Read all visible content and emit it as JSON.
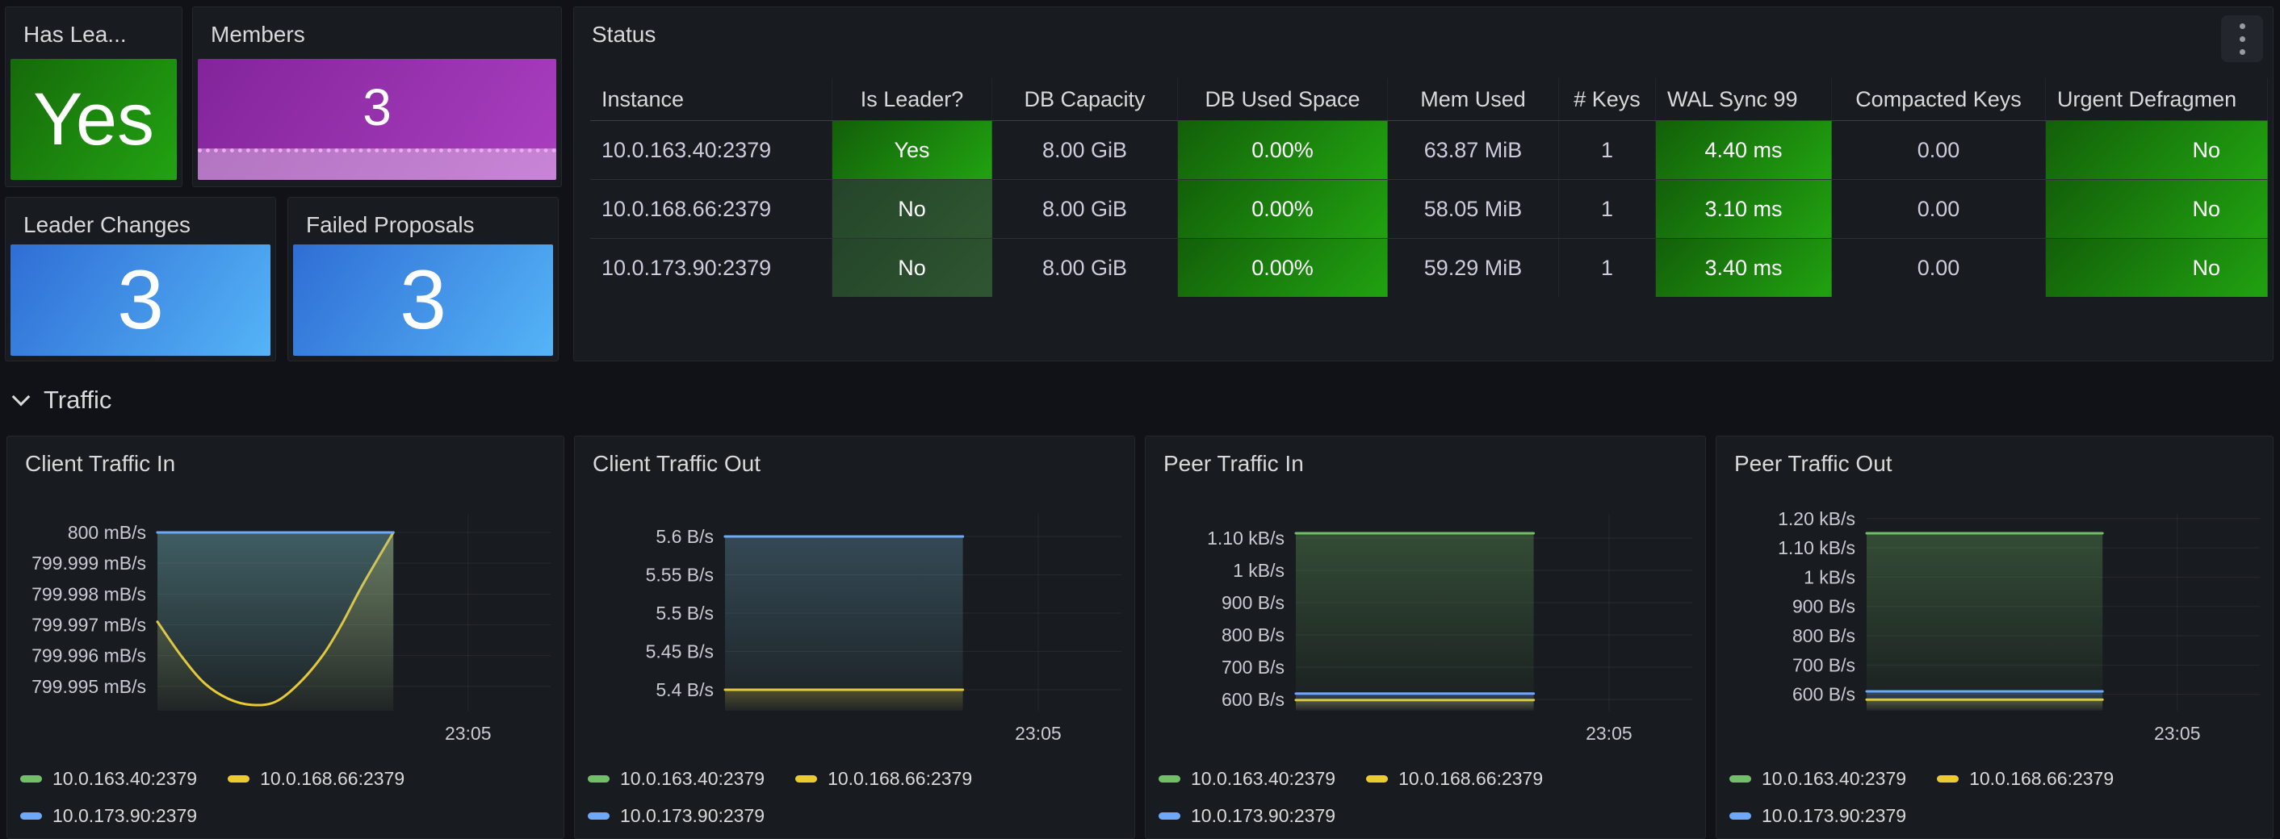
{
  "stats": {
    "has_leader": {
      "title": "Has Lea...",
      "value": "Yes"
    },
    "members": {
      "title": "Members",
      "value": "3"
    },
    "leader_changes": {
      "title": "Leader Changes",
      "value": "3"
    },
    "failed_proposals": {
      "title": "Failed Proposals",
      "value": "3"
    }
  },
  "status_table": {
    "title": "Status",
    "columns": [
      "Instance",
      "Is Leader?",
      "DB Capacity",
      "DB Used Space",
      "Mem Used",
      "# Keys",
      "WAL Sync 99",
      "Compacted Keys",
      "Urgent Defragmen"
    ],
    "rows": [
      {
        "cells": [
          "10.0.163.40:2379",
          "Yes",
          "8.00 GiB",
          "0.00%",
          "63.87 MiB",
          "1",
          "4.40 ms",
          "0.00",
          "No"
        ],
        "cell_styles": [
          "plain",
          "green",
          "plain",
          "green",
          "plain",
          "plain",
          "green",
          "plain",
          "green"
        ]
      },
      {
        "cells": [
          "10.0.168.66:2379",
          "No",
          "8.00 GiB",
          "0.00%",
          "58.05 MiB",
          "1",
          "3.10 ms",
          "0.00",
          "No"
        ],
        "cell_styles": [
          "plain",
          "dimgreen",
          "plain",
          "green",
          "plain",
          "plain",
          "green",
          "plain",
          "green"
        ]
      },
      {
        "cells": [
          "10.0.173.90:2379",
          "No",
          "8.00 GiB",
          "0.00%",
          "59.29 MiB",
          "1",
          "3.40 ms",
          "0.00",
          "No"
        ],
        "cell_styles": [
          "plain",
          "dimgreen",
          "plain",
          "green",
          "plain",
          "plain",
          "green",
          "plain",
          "green"
        ]
      }
    ]
  },
  "section": {
    "title": "Traffic"
  },
  "colors": {
    "series_green": "#73BF69",
    "series_yellow": "#EBCB2E",
    "series_blue": "#6FA8F7",
    "stat_green": "#1d9a0f",
    "stat_purple": "#a13dbb",
    "stat_blue": "#3e8ae0",
    "cell_green": "#209f10"
  },
  "chart_data": [
    {
      "type": "line",
      "title": "Client Traffic In",
      "x_tick": "23:05",
      "x_tick_frac": 0.79,
      "data_frac": 0.6,
      "plot_top": 39,
      "ylim": [
        799.99421,
        800.0
      ],
      "grid": true,
      "legend_position": "bottom",
      "y_ticks": [
        {
          "v": 800,
          "label": "800 mB/s"
        },
        {
          "v": 799.999,
          "label": "799.999 mB/s"
        },
        {
          "v": 799.998,
          "label": "799.998 mB/s"
        },
        {
          "v": 799.997,
          "label": "799.997 mB/s"
        },
        {
          "v": 799.996,
          "label": "799.996 mB/s"
        },
        {
          "v": 799.995,
          "label": "799.995 mB/s"
        }
      ],
      "series": [
        {
          "name": "10.0.163.40:2379",
          "color": "#73BF69",
          "fill_opacity": 0.25,
          "points": [
            [
              0,
              800
            ],
            [
              1,
              800
            ]
          ]
        },
        {
          "name": "10.0.168.66:2379",
          "color": "#EBCB2E",
          "fill_opacity": 0.28,
          "points": [
            [
              0,
              799.9971
            ],
            [
              0.1,
              799.996
            ],
            [
              0.2,
              799.9951
            ],
            [
              0.3,
              799.9946
            ],
            [
              0.4,
              799.9944
            ],
            [
              0.5,
              799.9945
            ],
            [
              0.6,
              799.9951
            ],
            [
              0.7,
              799.996
            ],
            [
              0.78,
              799.997
            ],
            [
              0.87,
              799.9983
            ],
            [
              1,
              800
            ]
          ]
        },
        {
          "name": "10.0.173.90:2379",
          "color": "#6FA8F7",
          "fill_opacity": 0.25,
          "points": [
            [
              0,
              800
            ],
            [
              1,
              800
            ]
          ]
        }
      ]
    },
    {
      "type": "line",
      "title": "Client Traffic Out",
      "x_tick": "23:05",
      "x_tick_frac": 0.79,
      "data_frac": 0.6,
      "plot_top": 44,
      "ylim": [
        5.3726,
        5.6
      ],
      "grid": true,
      "legend_position": "bottom",
      "y_ticks": [
        {
          "v": 5.6,
          "label": "5.6 B/s"
        },
        {
          "v": 5.55,
          "label": "5.55 B/s"
        },
        {
          "v": 5.5,
          "label": "5.5 B/s"
        },
        {
          "v": 5.45,
          "label": "5.45 B/s"
        },
        {
          "v": 5.4,
          "label": "5.4 B/s"
        }
      ],
      "series": [
        {
          "name": "10.0.163.40:2379",
          "color": "#73BF69",
          "fill_opacity": 0.12,
          "points": [
            [
              0,
              5.6
            ],
            [
              1,
              5.6
            ]
          ]
        },
        {
          "name": "10.0.168.66:2379",
          "color": "#EBCB2E",
          "fill_opacity": 0.25,
          "points": [
            [
              0,
              5.4
            ],
            [
              1,
              5.4
            ]
          ]
        },
        {
          "name": "10.0.173.90:2379",
          "color": "#6FA8F7",
          "fill_opacity": 0.22,
          "points": [
            [
              0,
              5.6
            ],
            [
              1,
              5.6
            ]
          ]
        }
      ]
    },
    {
      "type": "line",
      "title": "Peer Traffic In",
      "x_tick": "23:05",
      "x_tick_frac": 0.79,
      "data_frac": 0.6,
      "plot_top": 40,
      "ylim": [
        565,
        1115
      ],
      "grid": true,
      "legend_position": "bottom",
      "y_ticks": [
        {
          "v": 1100,
          "label": "1.10 kB/s"
        },
        {
          "v": 1000,
          "label": "1 kB/s"
        },
        {
          "v": 900,
          "label": "900 B/s"
        },
        {
          "v": 800,
          "label": "800 B/s"
        },
        {
          "v": 700,
          "label": "700 B/s"
        },
        {
          "v": 600,
          "label": "600 B/s"
        }
      ],
      "series": [
        {
          "name": "10.0.163.40:2379",
          "color": "#73BF69",
          "fill_opacity": 0.3,
          "points": [
            [
              0,
              1115
            ],
            [
              1,
              1115
            ]
          ]
        },
        {
          "name": "10.0.168.66:2379",
          "color": "#EBCB2E",
          "fill_opacity": 0.25,
          "points": [
            [
              0,
              598
            ],
            [
              1,
              598
            ]
          ]
        },
        {
          "name": "10.0.173.90:2379",
          "color": "#6FA8F7",
          "fill_opacity": 0.25,
          "points": [
            [
              0,
              618
            ],
            [
              1,
              618
            ]
          ]
        }
      ]
    },
    {
      "type": "line",
      "title": "Peer Traffic Out",
      "x_tick": "23:05",
      "x_tick_frac": 0.79,
      "data_frac": 0.6,
      "plot_top": 16,
      "ylim": [
        544,
        1216
      ],
      "grid": true,
      "legend_position": "bottom",
      "y_ticks": [
        {
          "v": 1200,
          "label": "1.20 kB/s"
        },
        {
          "v": 1100,
          "label": "1.10 kB/s"
        },
        {
          "v": 1000,
          "label": "1 kB/s"
        },
        {
          "v": 900,
          "label": "900 B/s"
        },
        {
          "v": 800,
          "label": "800 B/s"
        },
        {
          "v": 700,
          "label": "700 B/s"
        },
        {
          "v": 600,
          "label": "600 B/s"
        }
      ],
      "series": [
        {
          "name": "10.0.163.40:2379",
          "color": "#73BF69",
          "fill_opacity": 0.3,
          "points": [
            [
              0,
              1150
            ],
            [
              1,
              1150
            ]
          ]
        },
        {
          "name": "10.0.168.66:2379",
          "color": "#EBCB2E",
          "fill_opacity": 0.25,
          "points": [
            [
              0,
              582
            ],
            [
              1,
              582
            ]
          ]
        },
        {
          "name": "10.0.173.90:2379",
          "color": "#6FA8F7",
          "fill_opacity": 0.25,
          "points": [
            [
              0,
              610
            ],
            [
              1,
              610
            ]
          ]
        }
      ]
    }
  ]
}
